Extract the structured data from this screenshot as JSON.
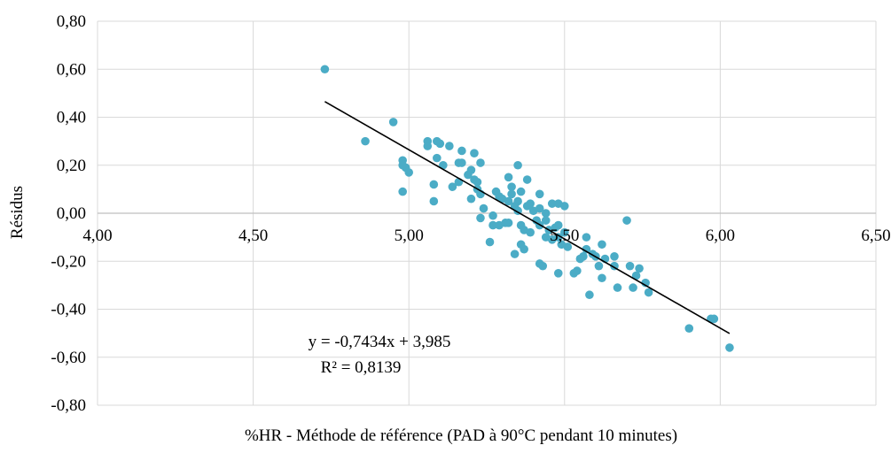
{
  "chart_data": {
    "type": "scatter",
    "title": "",
    "xlabel": "%HR - Méthode de référence (PAD à 90°C pendant 10 minutes)",
    "ylabel": "Résidus",
    "xlim": [
      4.0,
      6.5
    ],
    "ylim": [
      -0.8,
      0.8
    ],
    "x_ticks": [
      "4,00",
      "4,50",
      "5,00",
      "5,50",
      "6,00",
      "6,50"
    ],
    "y_ticks": [
      "0,80",
      "0,60",
      "0,40",
      "0,20",
      "0,00",
      "-0,20",
      "-0,40",
      "-0,60",
      "-0,80"
    ],
    "x_tick_values": [
      4.0,
      4.5,
      5.0,
      5.5,
      6.0,
      6.5
    ],
    "y_tick_values": [
      0.8,
      0.6,
      0.4,
      0.2,
      0.0,
      -0.2,
      -0.4,
      -0.6,
      -0.8
    ],
    "grid": true,
    "marker_color": "#4bacc6",
    "trendline_color": "#000000",
    "trendline": {
      "slope": -0.7434,
      "intercept": 3.985,
      "x_start": 4.73,
      "x_end": 6.03
    },
    "equation_text": "y = -0,7434x + 3,985",
    "r2_text": "R² = 0,8139",
    "points": [
      [
        4.73,
        0.6
      ],
      [
        4.86,
        0.3
      ],
      [
        4.95,
        0.38
      ],
      [
        4.98,
        0.22
      ],
      [
        4.98,
        0.2
      ],
      [
        4.98,
        0.09
      ],
      [
        4.99,
        0.19
      ],
      [
        5.0,
        0.17
      ],
      [
        5.06,
        0.3
      ],
      [
        5.06,
        0.28
      ],
      [
        5.08,
        0.12
      ],
      [
        5.08,
        0.05
      ],
      [
        5.09,
        0.3
      ],
      [
        5.09,
        0.23
      ],
      [
        5.1,
        0.29
      ],
      [
        5.11,
        0.2
      ],
      [
        5.13,
        0.28
      ],
      [
        5.14,
        0.11
      ],
      [
        5.16,
        0.21
      ],
      [
        5.16,
        0.13
      ],
      [
        5.17,
        0.26
      ],
      [
        5.17,
        0.21
      ],
      [
        5.19,
        0.16
      ],
      [
        5.2,
        0.06
      ],
      [
        5.2,
        0.18
      ],
      [
        5.21,
        0.14
      ],
      [
        5.21,
        0.25
      ],
      [
        5.22,
        0.13
      ],
      [
        5.22,
        0.1
      ],
      [
        5.23,
        0.21
      ],
      [
        5.23,
        0.08
      ],
      [
        5.23,
        -0.02
      ],
      [
        5.24,
        0.02
      ],
      [
        5.26,
        -0.12
      ],
      [
        5.27,
        -0.05
      ],
      [
        5.27,
        -0.01
      ],
      [
        5.28,
        0.09
      ],
      [
        5.29,
        0.07
      ],
      [
        5.29,
        -0.05
      ],
      [
        5.3,
        0.06
      ],
      [
        5.31,
        -0.04
      ],
      [
        5.32,
        0.15
      ],
      [
        5.32,
        0.05
      ],
      [
        5.32,
        -0.04
      ],
      [
        5.33,
        0.11
      ],
      [
        5.33,
        0.08
      ],
      [
        5.34,
        0.03
      ],
      [
        5.34,
        -0.17
      ],
      [
        5.35,
        0.2
      ],
      [
        5.35,
        0.05
      ],
      [
        5.35,
        0.01
      ],
      [
        5.36,
        0.09
      ],
      [
        5.36,
        -0.05
      ],
      [
        5.36,
        -0.13
      ],
      [
        5.37,
        -0.07
      ],
      [
        5.37,
        -0.15
      ],
      [
        5.38,
        0.14
      ],
      [
        5.38,
        0.03
      ],
      [
        5.39,
        0.04
      ],
      [
        5.39,
        -0.08
      ],
      [
        5.4,
        0.01
      ],
      [
        5.41,
        -0.03
      ],
      [
        5.42,
        0.08
      ],
      [
        5.42,
        0.02
      ],
      [
        5.42,
        -0.05
      ],
      [
        5.42,
        -0.21
      ],
      [
        5.43,
        -0.22
      ],
      [
        5.44,
        0.0
      ],
      [
        5.44,
        -0.03
      ],
      [
        5.44,
        -0.1
      ],
      [
        5.45,
        -0.07
      ],
      [
        5.46,
        0.04
      ],
      [
        5.46,
        -0.11
      ],
      [
        5.47,
        -0.06
      ],
      [
        5.48,
        0.04
      ],
      [
        5.48,
        -0.05
      ],
      [
        5.48,
        -0.1
      ],
      [
        5.48,
        -0.25
      ],
      [
        5.49,
        -0.13
      ],
      [
        5.5,
        0.03
      ],
      [
        5.5,
        -0.08
      ],
      [
        5.51,
        -0.14
      ],
      [
        5.53,
        -0.25
      ],
      [
        5.54,
        -0.24
      ],
      [
        5.55,
        -0.19
      ],
      [
        5.56,
        -0.18
      ],
      [
        5.57,
        -0.15
      ],
      [
        5.57,
        -0.1
      ],
      [
        5.58,
        -0.34
      ],
      [
        5.59,
        -0.17
      ],
      [
        5.6,
        -0.18
      ],
      [
        5.61,
        -0.22
      ],
      [
        5.62,
        -0.13
      ],
      [
        5.62,
        -0.27
      ],
      [
        5.63,
        -0.19
      ],
      [
        5.66,
        -0.18
      ],
      [
        5.66,
        -0.22
      ],
      [
        5.67,
        -0.31
      ],
      [
        5.7,
        -0.03
      ],
      [
        5.71,
        -0.22
      ],
      [
        5.72,
        -0.31
      ],
      [
        5.73,
        -0.26
      ],
      [
        5.74,
        -0.23
      ],
      [
        5.76,
        -0.29
      ],
      [
        5.77,
        -0.33
      ],
      [
        5.9,
        -0.48
      ],
      [
        5.97,
        -0.44
      ],
      [
        5.98,
        -0.44
      ],
      [
        6.03,
        -0.56
      ]
    ]
  }
}
